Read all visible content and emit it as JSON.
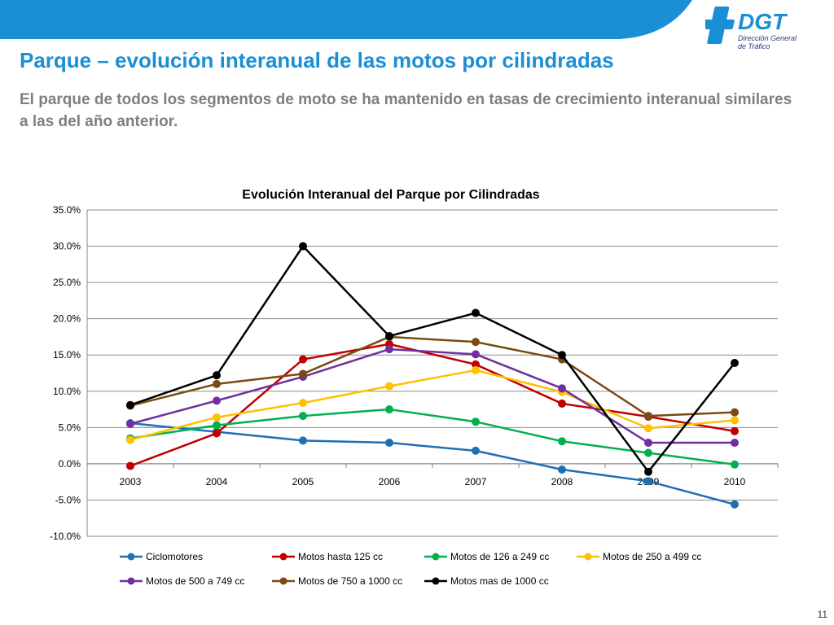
{
  "header": {
    "logo_text": "DGT",
    "logo_subtitle_1": "Dirección General",
    "logo_subtitle_2": "de Tráfico",
    "band_color": "#1a8fd6"
  },
  "slide": {
    "title": "Parque – evolución interanual de las motos por cilindradas",
    "subtitle": "El parque de todos los segmentos de moto se ha mantenido en tasas de crecimiento interanual similares a las del año anterior.",
    "page_number": "11"
  },
  "chart_data": {
    "type": "line",
    "title": "Evolución Interanual del Parque por Cilindradas",
    "xlabel": "",
    "ylabel": "",
    "categories": [
      "2003",
      "2004",
      "2005",
      "2006",
      "2007",
      "2008",
      "2009",
      "2010"
    ],
    "ylim": [
      -10,
      35
    ],
    "yticks": [
      35,
      30,
      25,
      20,
      15,
      10,
      5,
      0,
      -5,
      -10
    ],
    "ytick_labels": [
      "35.0%",
      "30.0%",
      "25.0%",
      "20.0%",
      "15.0%",
      "10.0%",
      "5.0%",
      "0.0%",
      "-5.0%",
      "-10.0%"
    ],
    "grid": true,
    "legend_position": "bottom",
    "series": [
      {
        "name": "Ciclomotores",
        "color": "#1f6fb5",
        "values": [
          5.6,
          4.4,
          3.2,
          2.9,
          1.8,
          -0.8,
          -2.4,
          -5.6
        ]
      },
      {
        "name": "Motos hasta 125 cc",
        "color": "#c00000",
        "values": [
          -0.3,
          4.2,
          14.4,
          16.5,
          13.7,
          8.3,
          6.5,
          4.5
        ]
      },
      {
        "name": "Motos de 126 a 249 cc",
        "color": "#00b050",
        "values": [
          3.5,
          5.3,
          6.6,
          7.5,
          5.8,
          3.1,
          1.5,
          -0.1
        ]
      },
      {
        "name": "Motos de 250 a 499 cc",
        "color": "#ffc000",
        "values": [
          3.3,
          6.4,
          8.4,
          10.7,
          12.9,
          9.9,
          4.9,
          6.0
        ]
      },
      {
        "name": "Motos de 500 a 749 cc",
        "color": "#7030a0",
        "values": [
          5.5,
          8.7,
          12.0,
          15.8,
          15.1,
          10.4,
          2.9,
          2.9
        ]
      },
      {
        "name": "Motos de 750 a 1000 cc",
        "color": "#7a4a10",
        "values": [
          8.0,
          11.0,
          12.4,
          17.5,
          16.8,
          14.4,
          6.6,
          7.1
        ]
      },
      {
        "name": "Motos mas de 1000 cc",
        "color": "#000000",
        "values": [
          8.1,
          12.2,
          30.0,
          17.6,
          20.8,
          15.0,
          -1.1,
          13.9
        ]
      }
    ]
  }
}
